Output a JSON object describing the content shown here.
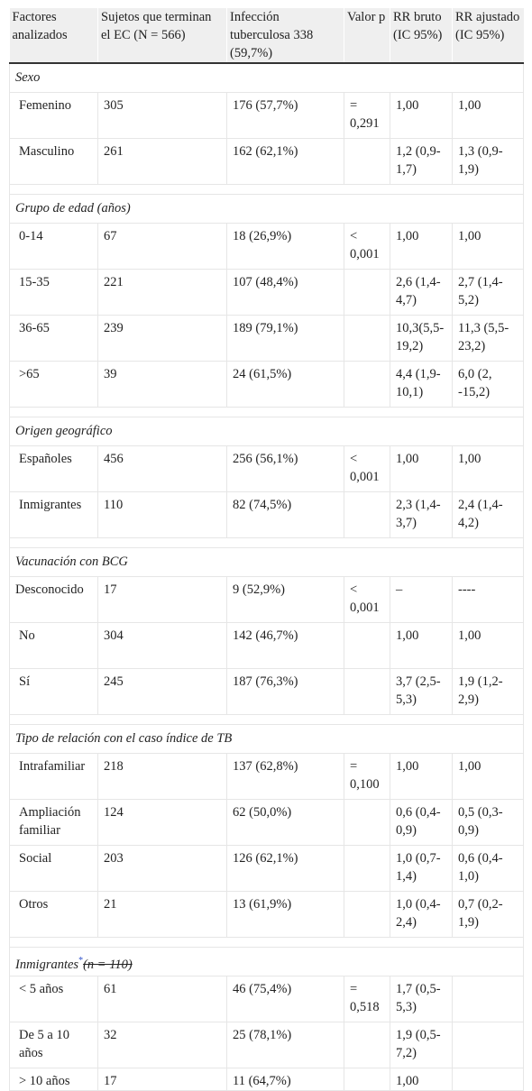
{
  "headers": {
    "c1": "Factores analizados",
    "c2": "Sujetos que terminan el EC (N = 566)",
    "c3": "Infección tuberculosa 338 (59,7%)",
    "c4": "Valor p",
    "c5": "RR bruto (IC 95%)",
    "c6": "RR ajustado (IC 95%)"
  },
  "sections": {
    "sexo": "Sexo",
    "edad": "Grupo de edad (años)",
    "origen": "Origen geográfico",
    "bcg": "Vacunación con BCG",
    "relacion": "Tipo de relación con el caso índice de TB",
    "inmigrantes": "Inmigrantes",
    "inmigrantes_mark": "*",
    "inmigrantes_n": "(n = 110)"
  },
  "rows": {
    "femenino": {
      "label": "Femenino",
      "n": "305",
      "inf": "176 (57,7%)",
      "p": "= 0,291",
      "rr": "1,00",
      "rra": "1,00"
    },
    "masculino": {
      "label": "Masculino",
      "n": "261",
      "inf": "162 (62,1%)",
      "p": "",
      "rr": "1,2 (0,9-1,7)",
      "rra": "1,3 (0,9-1,9)"
    },
    "e0_14": {
      "label": "0-14",
      "n": "67",
      "inf": "18 (26,9%)",
      "p": "< 0,001",
      "rr": "1,00",
      "rra": "1,00"
    },
    "e15_35": {
      "label": "15-35",
      "n": "221",
      "inf": "107 (48,4%)",
      "p": "",
      "rr": "2,6 (1,4-4,7)",
      "rra": "2,7 (1,4-5,2)"
    },
    "e36_65": {
      "label": "36-65",
      "n": "239",
      "inf": "189 (79,1%)",
      "p": "",
      "rr": "10,3(5,5-19,2)",
      "rra": "11,3 (5,5-23,2)"
    },
    "e65": {
      "label": ">65",
      "n": "39",
      "inf": "24 (61,5%)",
      "p": "",
      "rr": "4,4 (1,9-10,1)",
      "rra": "6,0 (2, -15,2)"
    },
    "espanoles": {
      "label": "Españoles",
      "n": "456",
      "inf": "256 (56,1%)",
      "p": "< 0,001",
      "rr": "1,00",
      "rra": "1,00"
    },
    "inmigr": {
      "label": "Inmigrantes",
      "n": "110",
      "inf": "82 (74,5%)",
      "p": "",
      "rr": "2,3 (1,4-3,7)",
      "rra": "2,4 (1,4-4,2)"
    },
    "desconocido": {
      "label": "Desconocido",
      "n": "17",
      "inf": "9 (52,9%)",
      "p": "< 0,001",
      "rr": "–",
      "rra": "----"
    },
    "no": {
      "label": "No",
      "n": "304",
      "inf": "142 (46,7%)",
      "p": "",
      "rr": "1,00",
      "rra": "1,00"
    },
    "si": {
      "label": "Sí",
      "n": "245",
      "inf": "187 (76,3%)",
      "p": "",
      "rr": "3,7 (2,5-5,3)",
      "rra": "1,9 (1,2-2,9)"
    },
    "intrafam": {
      "label": "Intrafamiliar",
      "n": "218",
      "inf": "137 (62,8%)",
      "p": "= 0,100",
      "rr": "1,00",
      "rra": "1,00"
    },
    "ampliacion": {
      "label": "Ampliación familiar",
      "n": "124",
      "inf": "62 (50,0%)",
      "p": "",
      "rr": "0,6 (0,4-0,9)",
      "rra": "0,5 (0,3-0,9)"
    },
    "social": {
      "label": "Social",
      "n": "203",
      "inf": "126 (62,1%)",
      "p": "",
      "rr": "1,0 (0,7-1,4)",
      "rra": "0,6 (0,4-1,0)"
    },
    "otros": {
      "label": "Otros",
      "n": "21",
      "inf": "13 (61,9%)",
      "p": "",
      "rr": "1,0 (0,4-2,4)",
      "rra": "0,7 (0,2-1,9)"
    },
    "menos5": {
      "label": "< 5 años",
      "n": "61",
      "inf": "46 (75,4%)",
      "p": "= 0,518",
      "rr": "1,7 (0,5-5,3)",
      "rra": ""
    },
    "de5a10": {
      "label": "De 5 a 10 años",
      "n": "32",
      "inf": "25 (78,1%)",
      "p": "",
      "rr": "1,9 (0,5-7,2)",
      "rra": ""
    },
    "mas10": {
      "label": "> 10 años",
      "n": "17",
      "inf": "11 (64,7%)",
      "p": "",
      "rr": "1,00",
      "rra": ""
    }
  }
}
